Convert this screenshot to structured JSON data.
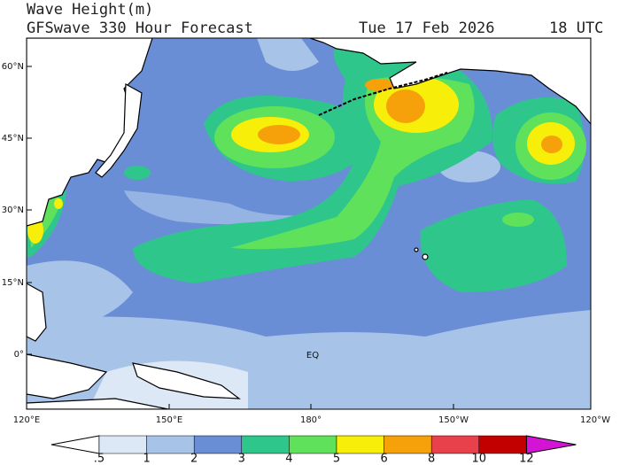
{
  "header": {
    "title": "Wave Height(m)",
    "subtitle": "GFSwave 330 Hour Forecast",
    "date": "Tue 17 Feb 2026",
    "time": "18 UTC"
  },
  "map": {
    "lat_labels": [
      "60°N",
      "45°N",
      "30°N",
      "15°N",
      "0°"
    ],
    "lon_labels": [
      "120°E",
      "150°E",
      "180°",
      "150°W",
      "120°W"
    ],
    "eq_label": "EQ"
  },
  "colorbar": {
    "labels": [
      ".5",
      "1",
      "2",
      "3",
      "4",
      "5",
      "6",
      "8",
      "10",
      "12"
    ],
    "colors": [
      "#ffffff",
      "#dce8f6",
      "#a8c3e8",
      "#6a8ed5",
      "#2fc68c",
      "#5fe15b",
      "#f7ef0a",
      "#f6a10a",
      "#e8414b",
      "#c20000",
      "#d414d4"
    ]
  }
}
